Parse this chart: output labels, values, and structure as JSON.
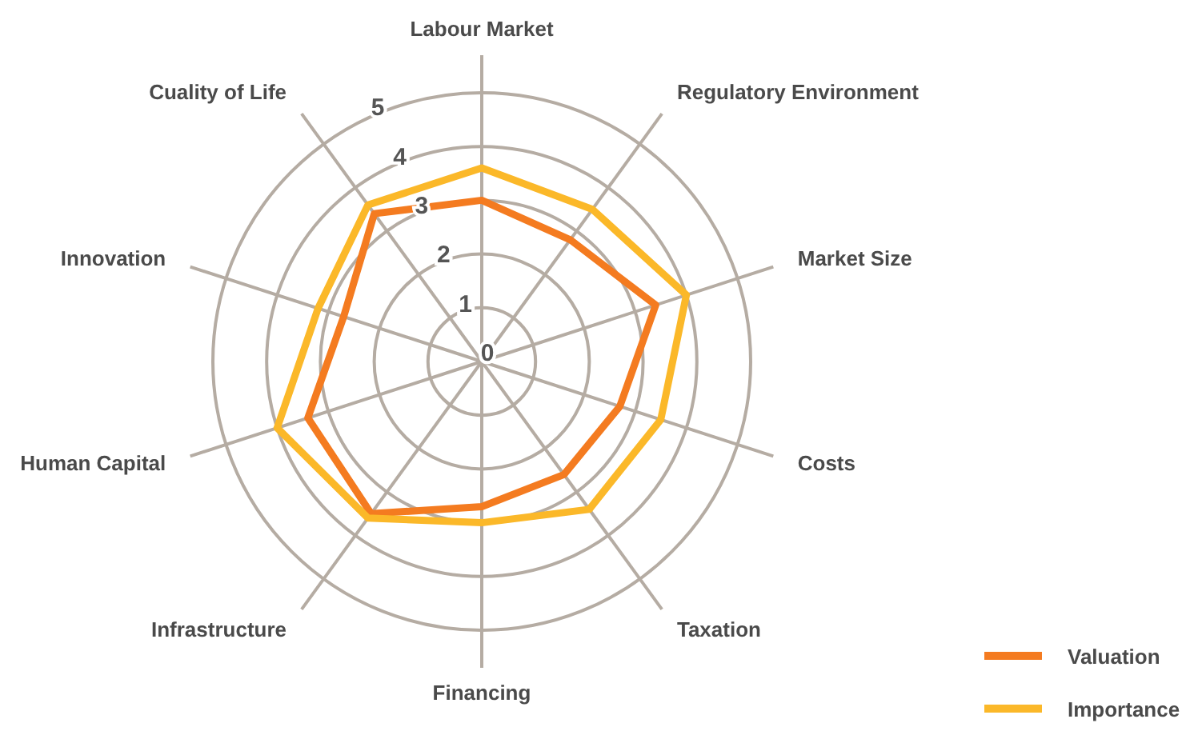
{
  "chart_data": {
    "type": "radar",
    "categories": [
      "Labour Market",
      "Regulatory Environment",
      "Market Size",
      "Costs",
      "Taxation",
      "Financing",
      "Infrastructure",
      "Human Capital",
      "Innovation",
      "Cuality of Life"
    ],
    "series": [
      {
        "name": "Valuation",
        "color": "#f47b20",
        "values": [
          3.0,
          2.8,
          3.4,
          2.7,
          2.6,
          2.7,
          3.5,
          3.4,
          2.7,
          3.4
        ]
      },
      {
        "name": "Importance",
        "color": "#fbb829",
        "values": [
          3.6,
          3.5,
          4.0,
          3.5,
          3.4,
          3.0,
          3.6,
          4.0,
          3.2,
          3.6
        ]
      }
    ],
    "ylim": [
      0,
      5
    ],
    "yticks": [
      0,
      1,
      2,
      3,
      4,
      5
    ],
    "grid": true,
    "legend": "bottom right"
  }
}
